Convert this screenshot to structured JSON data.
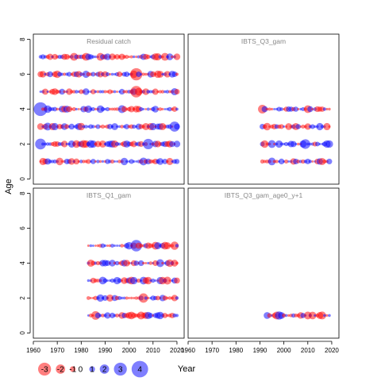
{
  "chart_data": {
    "type": "scatter",
    "encoding": "bubble residuals; blue = positive, red = negative; size = magnitude",
    "xlabel": "Year",
    "ylabel": "Age",
    "x_ticks": [
      "1960",
      "1970",
      "1980",
      "1990",
      "2000",
      "2010",
      "2020"
    ],
    "y_ticks": [
      "0",
      "2",
      "4",
      "6",
      "8"
    ],
    "xlim": [
      1960,
      2023
    ],
    "ylim": [
      -0.3,
      8.3
    ],
    "grid": false,
    "colors": {
      "positive": "#0000ff",
      "negative": "#ff0000",
      "panel_title": "#888888"
    },
    "legend": {
      "position": "bottom-left",
      "items": [
        "-3",
        "-2",
        "-1",
        "0",
        "1",
        "2",
        "3",
        "4"
      ]
    },
    "panels": [
      {
        "title": "Residual catch",
        "years": [
          1963,
          2020
        ],
        "ages": [
          1,
          2,
          3,
          4,
          5,
          6,
          7
        ],
        "notable_points": [
          {
            "x": 1963,
            "y": 4,
            "value": 3.2
          },
          {
            "x": 1963,
            "y": 2,
            "value": 2.4
          },
          {
            "x": 2003,
            "y": 6,
            "value": -2.8
          },
          {
            "x": 2003,
            "y": 5,
            "value": -2.6
          },
          {
            "x": 2008,
            "y": 2,
            "value": 2.3
          },
          {
            "x": 2019,
            "y": 3,
            "value": 2.2
          }
        ]
      },
      {
        "title": "IBTS_Q3_gam",
        "years": [
          1991,
          2019
        ],
        "ages": [
          1,
          2,
          3,
          4
        ],
        "notable_points": [
          {
            "x": 1991,
            "y": 4,
            "value": -1.8
          },
          {
            "x": 2009,
            "y": 2,
            "value": 2.1
          },
          {
            "x": 2018,
            "y": 3,
            "value": -1.4
          }
        ]
      },
      {
        "title": "IBTS_Q1_gam",
        "years": [
          1983,
          2020
        ],
        "ages": [
          1,
          2,
          3,
          4,
          5
        ],
        "notable_points": [
          {
            "x": 2003,
            "y": 5,
            "value": 2.6
          },
          {
            "x": 2006,
            "y": 2,
            "value": -2.0
          },
          {
            "x": 1986,
            "y": 1,
            "value": -1.8
          },
          {
            "x": 2019,
            "y": 5,
            "value": -1.7
          }
        ]
      },
      {
        "title": "IBTS_Q3_gam_age0_y+1",
        "years": [
          1993,
          2019
        ],
        "ages": [
          1
        ],
        "notable_points": [
          {
            "x": 1998,
            "y": 1,
            "value": 1.7
          },
          {
            "x": 2016,
            "y": 1,
            "value": -1.6
          }
        ]
      }
    ]
  }
}
